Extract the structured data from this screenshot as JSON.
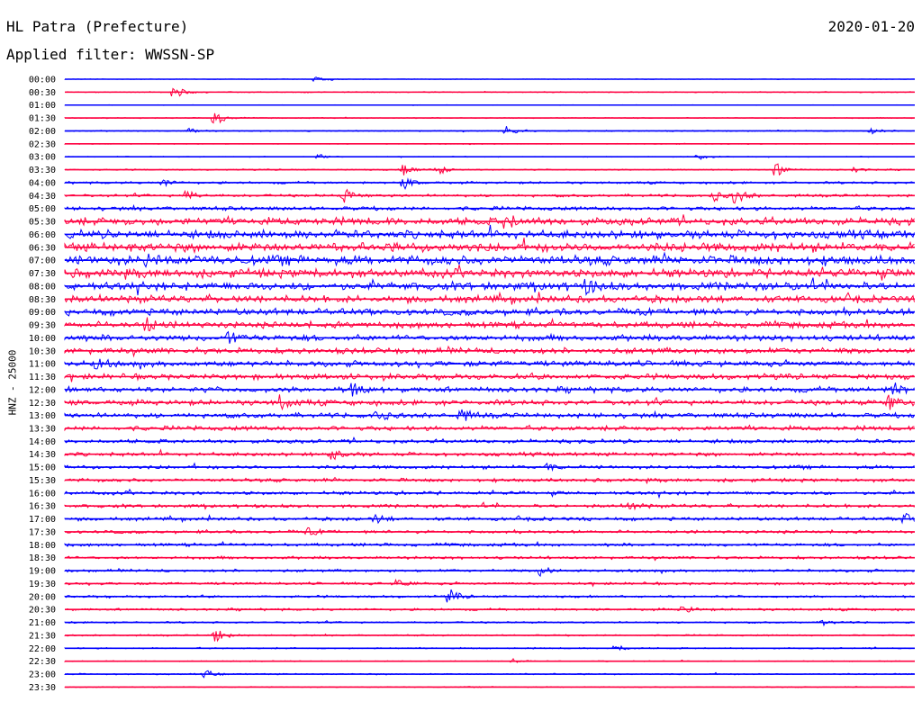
{
  "header": {
    "station": "HL Patra (Prefecture)",
    "date": "2020-01-20",
    "filter": "Applied filter: WWSSN-SP"
  },
  "colors": {
    "odd_trace": "#0000ff",
    "even_trace": "#ff0040"
  },
  "chart_data": {
    "type": "line",
    "title": "HL Patra (Prefecture)",
    "subtitle": "Applied filter: WWSSN-SP",
    "date": "2020-01-20",
    "ylabel": "HNZ - 25000",
    "xlabel": "",
    "rows": [
      "00:00",
      "00:30",
      "01:00",
      "01:30",
      "02:00",
      "02:30",
      "03:00",
      "03:30",
      "04:00",
      "04:30",
      "05:00",
      "05:30",
      "06:00",
      "06:30",
      "07:00",
      "07:30",
      "08:00",
      "08:30",
      "09:00",
      "09:30",
      "10:00",
      "10:30",
      "11:00",
      "11:30",
      "12:00",
      "12:30",
      "13:00",
      "13:30",
      "14:00",
      "14:30",
      "15:00",
      "15:30",
      "16:00",
      "16:30",
      "17:00",
      "17:30",
      "18:00",
      "18:30",
      "19:00",
      "19:30",
      "20:00",
      "20:30",
      "21:00",
      "21:30",
      "22:00",
      "22:30",
      "23:00",
      "23:30"
    ],
    "row_minutes": 30,
    "noise_level": [
      0.3,
      0.5,
      0.3,
      0.5,
      0.6,
      0.4,
      0.4,
      0.7,
      1.2,
      1.4,
      2.0,
      3.8,
      4.2,
      4.6,
      4.8,
      4.4,
      4.2,
      3.6,
      3.4,
      3.2,
      3.1,
      3.0,
      2.9,
      2.8,
      2.8,
      2.7,
      2.5,
      2.4,
      2.0,
      1.9,
      1.8,
      1.8,
      1.8,
      1.8,
      1.8,
      1.6,
      1.6,
      1.5,
      1.4,
      1.3,
      1.2,
      1.2,
      0.9,
      0.8,
      0.7,
      0.5,
      0.7,
      0.5
    ],
    "events": [
      {
        "row": 0,
        "minute": 8.9,
        "amp": 4
      },
      {
        "row": 1,
        "minute": 3.9,
        "amp": 7
      },
      {
        "row": 3,
        "minute": 5.3,
        "amp": 9
      },
      {
        "row": 4,
        "minute": 15.6,
        "amp": 7
      },
      {
        "row": 4,
        "minute": 4.4,
        "amp": 3
      },
      {
        "row": 4,
        "minute": 28.5,
        "amp": 3
      },
      {
        "row": 6,
        "minute": 9.0,
        "amp": 3
      },
      {
        "row": 6,
        "minute": 22.4,
        "amp": 3
      },
      {
        "row": 7,
        "minute": 12.0,
        "amp": 7
      },
      {
        "row": 7,
        "minute": 13.2,
        "amp": 6
      },
      {
        "row": 7,
        "minute": 25.1,
        "amp": 8
      },
      {
        "row": 7,
        "minute": 27.8,
        "amp": 4
      },
      {
        "row": 8,
        "minute": 12.0,
        "amp": 6
      },
      {
        "row": 8,
        "minute": 3.5,
        "amp": 4
      },
      {
        "row": 9,
        "minute": 4.3,
        "amp": 6
      },
      {
        "row": 9,
        "minute": 9.9,
        "amp": 8
      },
      {
        "row": 9,
        "minute": 22.9,
        "amp": 7
      },
      {
        "row": 9,
        "minute": 23.7,
        "amp": 9
      },
      {
        "row": 11,
        "minute": 15.6,
        "amp": 8
      },
      {
        "row": 14,
        "minute": 3.0,
        "amp": 9
      },
      {
        "row": 16,
        "minute": 18.5,
        "amp": 7
      },
      {
        "row": 19,
        "minute": 2.9,
        "amp": 7
      },
      {
        "row": 20,
        "minute": 5.8,
        "amp": 6
      },
      {
        "row": 22,
        "minute": 1.1,
        "amp": 6
      },
      {
        "row": 24,
        "minute": 10.2,
        "amp": 8
      },
      {
        "row": 24,
        "minute": 29.3,
        "amp": 7
      },
      {
        "row": 25,
        "minute": 7.6,
        "amp": 9
      },
      {
        "row": 25,
        "minute": 29.1,
        "amp": 8
      },
      {
        "row": 26,
        "minute": 11.0,
        "amp": 8
      },
      {
        "row": 26,
        "minute": 14.0,
        "amp": 6
      },
      {
        "row": 29,
        "minute": 9.5,
        "amp": 6
      },
      {
        "row": 30,
        "minute": 17.0,
        "amp": 4
      },
      {
        "row": 33,
        "minute": 20.0,
        "amp": 4
      },
      {
        "row": 34,
        "minute": 11.0,
        "amp": 4
      },
      {
        "row": 34,
        "minute": 29.7,
        "amp": 6
      },
      {
        "row": 35,
        "minute": 8.6,
        "amp": 4
      },
      {
        "row": 38,
        "minute": 16.8,
        "amp": 6
      },
      {
        "row": 39,
        "minute": 11.8,
        "amp": 5
      },
      {
        "row": 40,
        "minute": 13.6,
        "amp": 8
      },
      {
        "row": 41,
        "minute": 21.8,
        "amp": 5
      },
      {
        "row": 42,
        "minute": 26.8,
        "amp": 3
      },
      {
        "row": 43,
        "minute": 5.3,
        "amp": 9
      },
      {
        "row": 44,
        "minute": 19.5,
        "amp": 4
      },
      {
        "row": 45,
        "minute": 15.8,
        "amp": 3
      },
      {
        "row": 46,
        "minute": 5.0,
        "amp": 4
      }
    ]
  }
}
